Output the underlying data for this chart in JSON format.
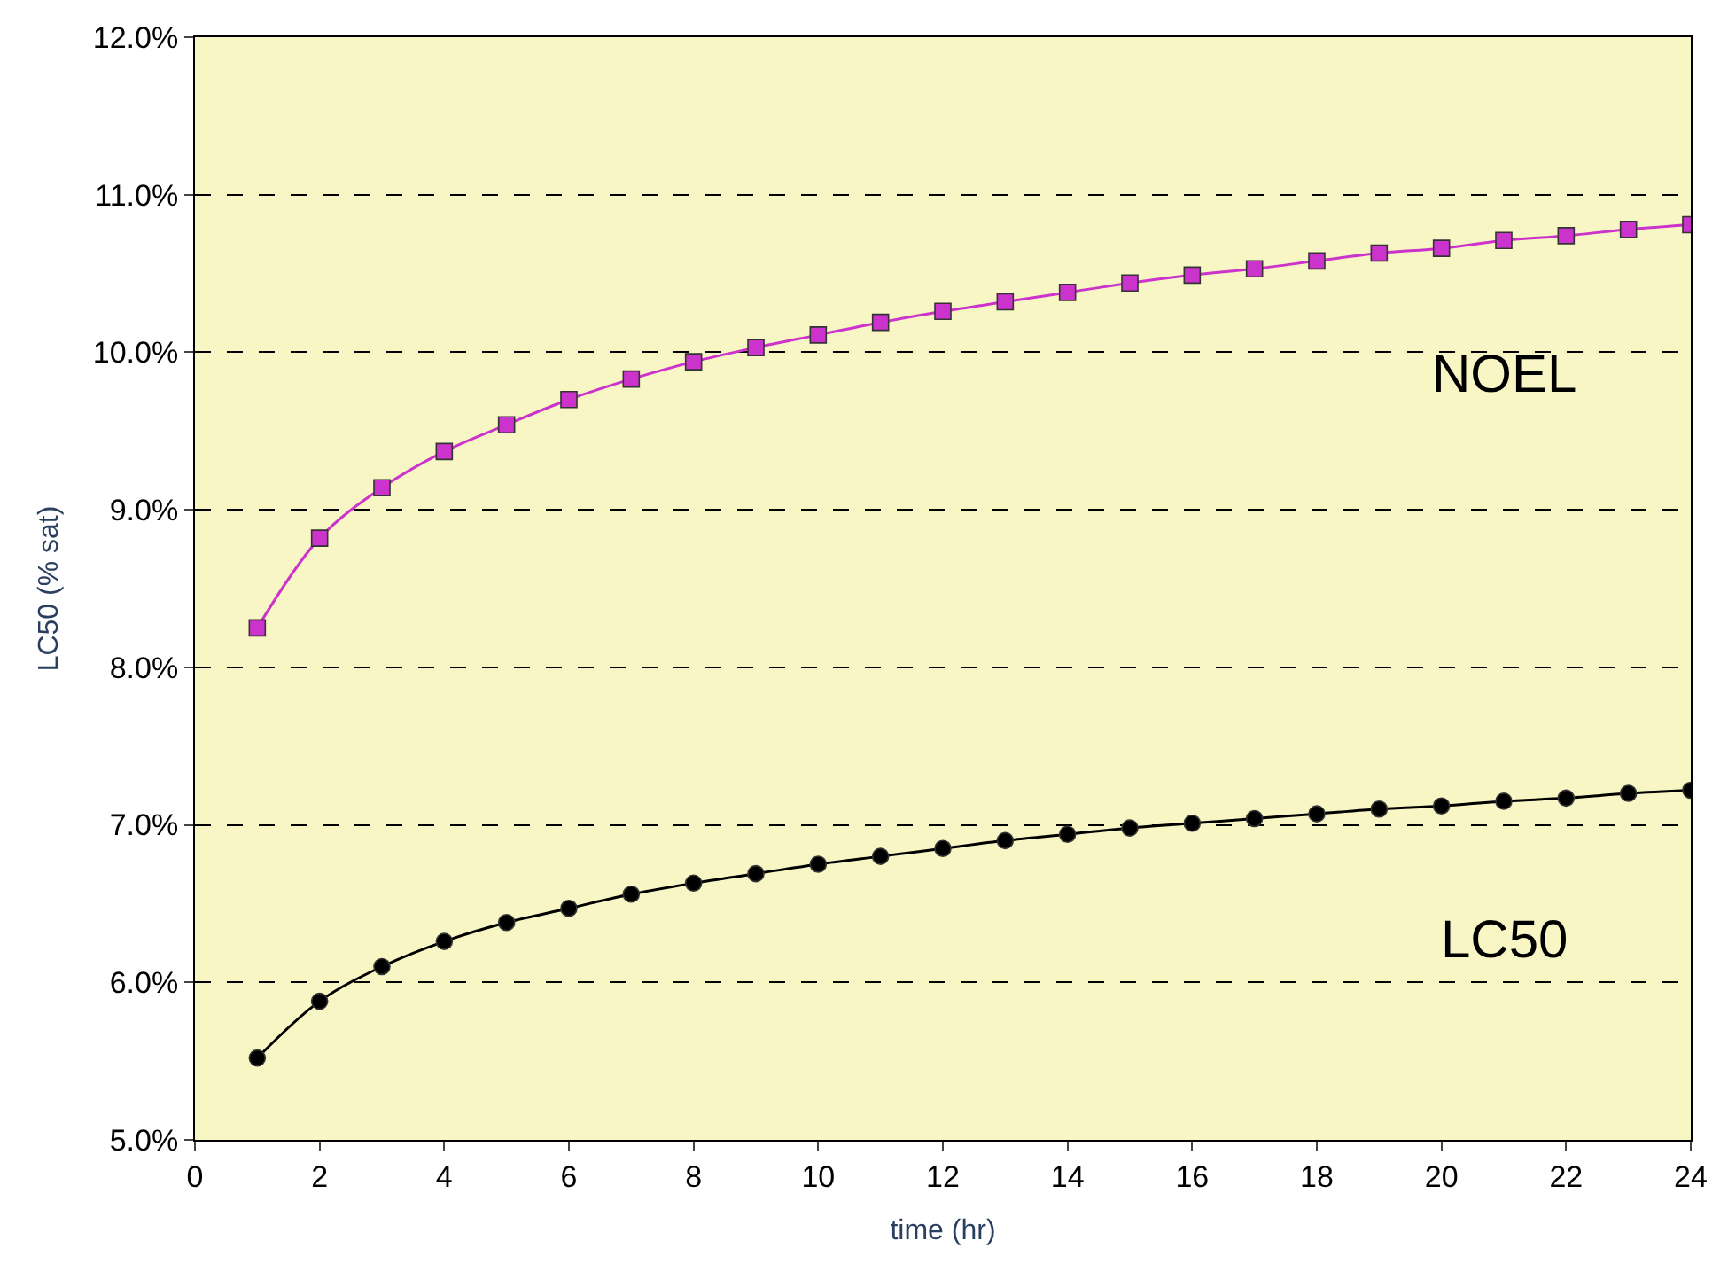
{
  "chart_data": {
    "type": "line",
    "xlabel": "time (hr)",
    "ylabel": "LC50 (% sat)",
    "x": [
      1,
      2,
      3,
      4,
      5,
      6,
      7,
      8,
      9,
      10,
      11,
      12,
      13,
      14,
      15,
      16,
      17,
      18,
      19,
      20,
      21,
      22,
      23,
      24
    ],
    "series": [
      {
        "name": "NOEL",
        "color": "#cc33cc",
        "marker": "square",
        "values": [
          8.25,
          8.82,
          9.14,
          9.37,
          9.54,
          9.7,
          9.83,
          9.94,
          10.03,
          10.11,
          10.19,
          10.26,
          10.32,
          10.38,
          10.44,
          10.49,
          10.53,
          10.58,
          10.63,
          10.66,
          10.71,
          10.74,
          10.78,
          10.81
        ]
      },
      {
        "name": "LC50",
        "color": "#000000",
        "marker": "circle",
        "values": [
          5.52,
          5.88,
          6.1,
          6.26,
          6.38,
          6.47,
          6.56,
          6.63,
          6.69,
          6.75,
          6.8,
          6.85,
          6.9,
          6.94,
          6.98,
          7.01,
          7.04,
          7.07,
          7.1,
          7.12,
          7.15,
          7.17,
          7.2,
          7.22
        ]
      }
    ],
    "xlim": [
      0,
      24
    ],
    "xticks": [
      0,
      2,
      4,
      6,
      8,
      10,
      12,
      14,
      16,
      18,
      20,
      22,
      24
    ],
    "ylim": [
      5,
      12
    ],
    "yticks": [
      {
        "value": 5,
        "label": "5.0%"
      },
      {
        "value": 6,
        "label": "6.0%"
      },
      {
        "value": 7,
        "label": "7.0%"
      },
      {
        "value": 8,
        "label": "8.0%"
      },
      {
        "value": 9,
        "label": "9.0%"
      },
      {
        "value": 10,
        "label": "10.0%"
      },
      {
        "value": 11,
        "label": "11.0%"
      },
      {
        "value": 12,
        "label": "12.0%"
      }
    ],
    "grid": "y",
    "legend": false,
    "line_style": "solid"
  }
}
